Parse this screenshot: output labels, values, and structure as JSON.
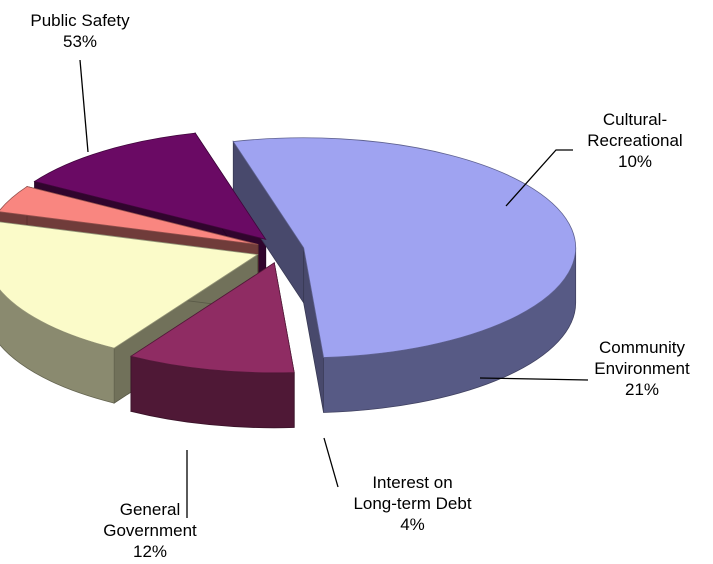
{
  "chart_data": {
    "type": "pie",
    "style": "3d-exploded",
    "slices": [
      {
        "key": "public_safety",
        "label_lines": [
          "Public Safety"
        ],
        "percent_text": "53%",
        "value": 53,
        "color": "#9fa3f1"
      },
      {
        "key": "cultural_recreational",
        "label_lines": [
          "Cultural-",
          "Recreational"
        ],
        "percent_text": "10%",
        "value": 10,
        "color": "#8f2c63"
      },
      {
        "key": "community_environment",
        "label_lines": [
          "Community",
          "Environment"
        ],
        "percent_text": "21%",
        "value": 21,
        "color": "#fbfbc9"
      },
      {
        "key": "interest_debt",
        "label_lines": [
          "Interest on",
          "Long-term Debt"
        ],
        "percent_text": "4%",
        "value": 4,
        "color": "#f98680"
      },
      {
        "key": "general_government",
        "label_lines": [
          "General",
          "Government"
        ],
        "percent_text": "12%",
        "value": 12,
        "color": "#6a0a64"
      }
    ]
  }
}
